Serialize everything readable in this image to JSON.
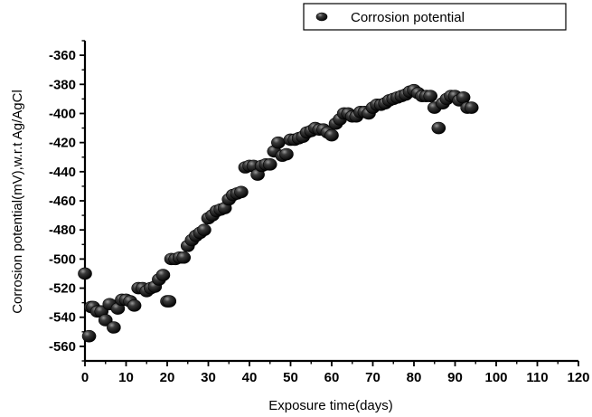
{
  "chart_data": {
    "type": "scatter",
    "xlabel": "Exposure time(days)",
    "ylabel": "Corrosion potential(mV),w.r.t Ag/AgCl",
    "xlim": [
      0,
      120
    ],
    "ylim": [
      -570,
      -350
    ],
    "xticks": [
      0,
      10,
      20,
      30,
      40,
      50,
      60,
      70,
      80,
      90,
      100,
      110,
      120
    ],
    "xtick_labels": [
      "0",
      "10",
      "20",
      "30",
      "40",
      "50",
      "60",
      "70",
      "80",
      "90",
      "100",
      "110",
      "120"
    ],
    "yticks": [
      -360,
      -380,
      -400,
      -420,
      -440,
      -460,
      -480,
      -500,
      -520,
      -540,
      -560
    ],
    "ytick_labels": [
      "-360",
      "-380",
      "-400",
      "-420",
      "-440",
      "-460",
      "-480",
      "-500",
      "-520",
      "-540",
      "-560"
    ],
    "grid": false,
    "legend_position": "top-right",
    "series": [
      {
        "name": "Corrosion potential",
        "color": "#111111",
        "x": [
          0,
          1,
          1.5,
          2,
          3,
          4,
          5,
          6,
          7,
          8,
          9,
          10,
          11,
          12,
          13,
          14,
          15,
          16,
          17,
          18,
          19,
          20,
          20.5,
          21,
          22,
          23,
          24,
          25,
          26,
          27,
          28,
          29,
          30,
          31,
          32,
          33,
          34,
          35,
          36,
          37,
          38,
          39,
          40,
          41,
          42,
          43,
          44,
          45,
          46,
          47,
          48,
          49,
          50,
          51,
          52,
          53,
          54,
          55,
          56,
          57,
          58,
          59,
          60,
          61,
          62,
          63,
          64,
          65,
          66,
          67,
          68,
          69,
          70,
          71,
          72,
          73,
          74,
          75,
          76,
          77,
          78,
          79,
          80,
          81,
          82,
          83,
          84,
          85,
          86,
          87,
          88,
          89,
          90,
          91,
          92,
          93,
          94
        ],
        "y": [
          -510,
          -553,
          -533,
          -533,
          -536,
          -536,
          -542,
          -531,
          -547,
          -534,
          -528,
          -528,
          -529,
          -532,
          -520,
          -520,
          -522,
          -520,
          -519,
          -514,
          -511,
          -529,
          -529,
          -500,
          -500,
          -499,
          -499,
          -491,
          -487,
          -484,
          -482,
          -480,
          -472,
          -470,
          -467,
          -466,
          -465,
          -459,
          -456,
          -455,
          -454,
          -437,
          -436,
          -436,
          -442,
          -436,
          -435,
          -435,
          -426,
          -420,
          -429,
          -428,
          -418,
          -418,
          -417,
          -416,
          -413,
          -412,
          -410,
          -411,
          -411,
          -413,
          -415,
          -407,
          -404,
          -400,
          -400,
          -402,
          -402,
          -399,
          -399,
          -400,
          -396,
          -394,
          -394,
          -393,
          -391,
          -390,
          -389,
          -388,
          -387,
          -385,
          -384,
          -386,
          -388,
          -388,
          -388,
          -396,
          -410,
          -393,
          -390,
          -388,
          -388,
          -391,
          -389,
          -396,
          -396
        ]
      }
    ]
  }
}
